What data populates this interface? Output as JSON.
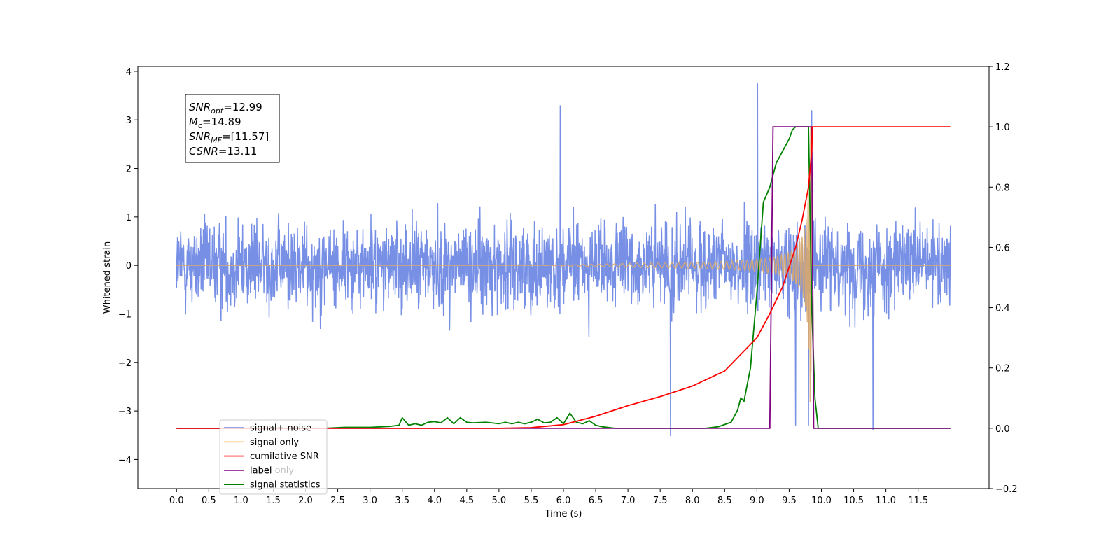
{
  "chart_data": {
    "type": "line",
    "xlabel": "Time (s)",
    "ylabel": "Whitened strain",
    "xlim": [
      -0.6,
      12.6
    ],
    "ylim_left": [
      -4.6,
      4.1
    ],
    "ylim_right": [
      -0.2,
      1.2
    ],
    "x_ticks": [
      "0.0",
      "0.5",
      "1.0",
      "1.5",
      "2.0",
      "2.5",
      "3.0",
      "3.5",
      "4.0",
      "4.5",
      "5.0",
      "5.5",
      "6.0",
      "6.5",
      "7.0",
      "7.5",
      "8.0",
      "8.5",
      "9.0",
      "9.5",
      "10.0",
      "10.5",
      "11.0",
      "11.5"
    ],
    "y_ticks_left": [
      "−4",
      "−3",
      "−2",
      "−1",
      "0",
      "1",
      "2",
      "3",
      "4"
    ],
    "y_ticks_right": [
      "−0.2",
      "0.0",
      "0.2",
      "0.4",
      "0.6",
      "0.8",
      "1.0",
      "1.2"
    ],
    "annotation": {
      "lines": [
        {
          "sym": "SNR",
          "sub": "opt",
          "value": "=12.99"
        },
        {
          "sym": "M",
          "sub": "c",
          "value": "=14.89"
        },
        {
          "sym": "SNR",
          "sub": "MF",
          "value": "=[11.57]"
        },
        {
          "sym": "CSNR",
          "sub": "",
          "value": "=13.11"
        }
      ]
    },
    "legend": {
      "position": "lower-left",
      "entries": [
        {
          "label": "signal+ noise",
          "color": "#6b87e4"
        },
        {
          "label": "signal only",
          "color": "#ffbf66"
        },
        {
          "label": "cumilative SNR",
          "color": "#ff0000"
        },
        {
          "label": "label",
          "color": "#800080"
        },
        {
          "label": "signal statistics",
          "color": "#008000"
        }
      ],
      "hidden_text": "label only"
    },
    "series": [
      {
        "name": "signal+ noise",
        "axis": "left",
        "color": "#6b87e4",
        "x_range": [
          0.0,
          12.0
        ],
        "envelope_typical": 1.4,
        "peak_max": 3.75,
        "peak_min": -3.52
      },
      {
        "name": "signal only",
        "axis": "left",
        "color": "#d9a86c",
        "chirp_start": 5.5,
        "chirp_end": 9.85,
        "max_amplitude": 2.9
      },
      {
        "name": "cumilative SNR",
        "axis": "right",
        "color": "#ff0000",
        "x": [
          0.0,
          5.0,
          5.5,
          6.0,
          6.5,
          7.0,
          7.5,
          8.0,
          8.5,
          9.0,
          9.2,
          9.4,
          9.6,
          9.7,
          9.8,
          9.85,
          9.86,
          12.0
        ],
        "y": [
          0.0,
          0.0,
          0.002,
          0.012,
          0.04,
          0.075,
          0.105,
          0.14,
          0.19,
          0.3,
          0.38,
          0.47,
          0.6,
          0.69,
          0.8,
          0.92,
          1.0,
          1.0
        ]
      },
      {
        "name": "label",
        "axis": "right",
        "color": "#800080",
        "x": [
          0.0,
          9.2,
          9.25,
          9.85,
          9.88,
          12.0
        ],
        "y": [
          0.0,
          0.0,
          1.0,
          1.0,
          0.0,
          0.0
        ]
      },
      {
        "name": "signal statistics",
        "axis": "right",
        "color": "#008000",
        "x": [
          0.0,
          2.3,
          2.6,
          3.0,
          3.3,
          3.45,
          3.5,
          3.6,
          3.7,
          3.8,
          3.9,
          4.0,
          4.1,
          4.2,
          4.3,
          4.4,
          4.5,
          4.6,
          4.8,
          5.0,
          5.1,
          5.2,
          5.3,
          5.4,
          5.5,
          5.6,
          5.7,
          5.8,
          5.9,
          6.0,
          6.1,
          6.2,
          6.3,
          6.4,
          6.5,
          6.6,
          6.8,
          8.2,
          8.4,
          8.6,
          8.7,
          8.75,
          8.8,
          8.9,
          9.0,
          9.1,
          9.2,
          9.3,
          9.4,
          9.5,
          9.55,
          9.6,
          9.65,
          9.7,
          9.75,
          9.8,
          9.85,
          9.9,
          9.95,
          12.0
        ],
        "y": [
          0.0,
          0.0,
          0.003,
          0.003,
          0.006,
          0.01,
          0.035,
          0.01,
          0.015,
          0.01,
          0.02,
          0.022,
          0.018,
          0.035,
          0.015,
          0.035,
          0.02,
          0.018,
          0.02,
          0.015,
          0.02,
          0.015,
          0.02,
          0.015,
          0.02,
          0.03,
          0.018,
          0.02,
          0.035,
          0.015,
          0.05,
          0.02,
          0.015,
          0.025,
          0.01,
          0.005,
          0.0,
          0.0,
          0.005,
          0.02,
          0.06,
          0.1,
          0.09,
          0.2,
          0.45,
          0.75,
          0.8,
          0.88,
          0.92,
          0.96,
          0.99,
          1.0,
          1.0,
          1.0,
          1.0,
          1.0,
          0.4,
          0.1,
          0.0,
          0.0
        ]
      }
    ]
  }
}
